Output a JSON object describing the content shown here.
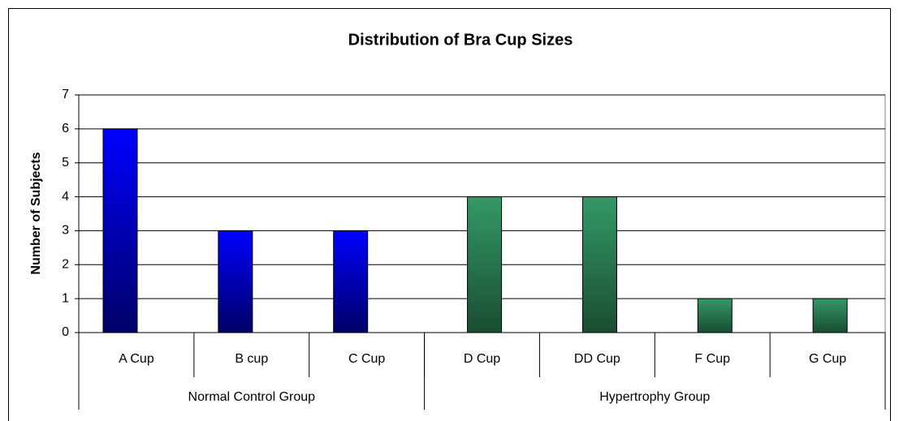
{
  "chart_data": {
    "type": "bar",
    "title": "Distribution of Bra Cup Sizes",
    "y_label": "Number of Subjects",
    "categories": [
      "A Cup",
      "B cup",
      "C Cup",
      "D Cup",
      "DD Cup",
      "F Cup",
      "G Cup"
    ],
    "series": [
      {
        "name": "Normal Control Group",
        "color": "#0000ff",
        "values": [
          6,
          3,
          3,
          null,
          null,
          null,
          null
        ]
      },
      {
        "name": "Hypertrophy Group",
        "color": "#339966",
        "values": [
          null,
          null,
          null,
          4,
          4,
          1,
          1
        ]
      }
    ],
    "ylim": [
      0,
      7
    ],
    "yticks": [
      0,
      1,
      2,
      3,
      4,
      5,
      6,
      7
    ],
    "grid": true
  }
}
